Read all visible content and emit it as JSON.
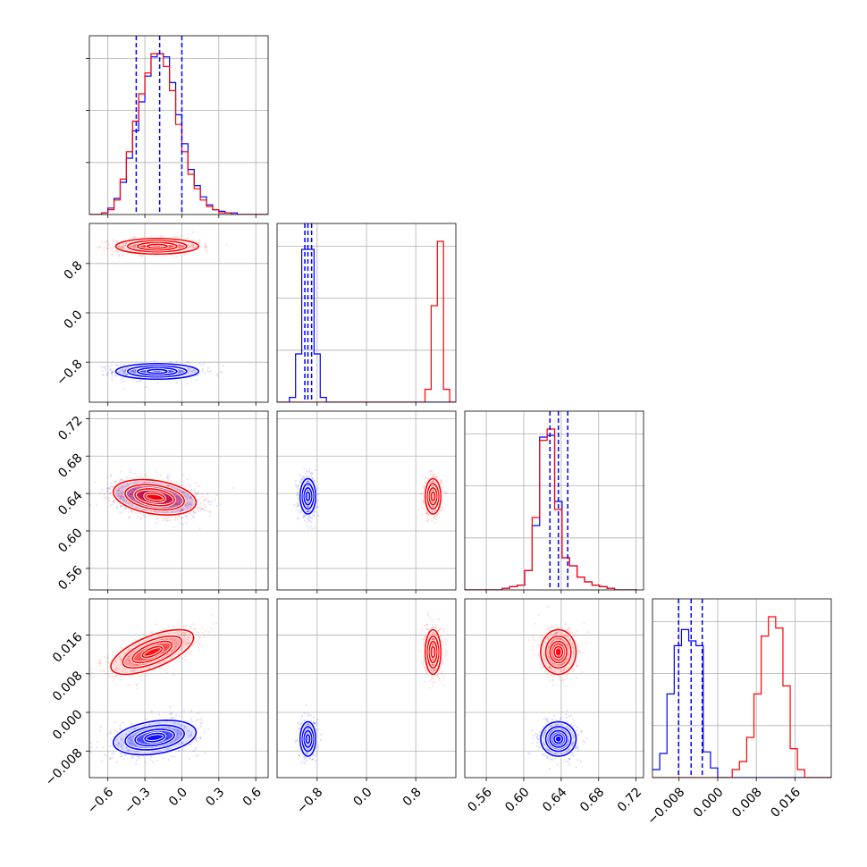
{
  "chart_data": {
    "type": "corner",
    "colors": {
      "blue": "#0000ff",
      "red": "#ff0000",
      "grid": "#b0b0b0"
    },
    "grid": true,
    "series": [
      {
        "color": "blue",
        "mean": [
          -0.18,
          -0.95,
          0.637,
          -0.0055
        ]
      },
      {
        "color": "red",
        "mean": [
          -0.18,
          1.08,
          0.637,
          0.0125
        ]
      }
    ],
    "parameters": [
      {
        "range": [
          -0.75,
          0.7
        ],
        "ticks": [
          -0.6,
          -0.3,
          0.0,
          0.3,
          0.6
        ],
        "tick_labels": [
          "−0.6",
          "−0.3",
          "0.0",
          "0.3",
          "0.6"
        ]
      },
      {
        "range": [
          -1.45,
          1.45
        ],
        "ticks": [
          -0.8,
          0.0,
          0.8
        ],
        "tick_labels": [
          "−0.8",
          "0.0",
          "0.8"
        ]
      },
      {
        "range": [
          0.537,
          0.728
        ],
        "ticks": [
          0.56,
          0.6,
          0.64,
          0.68,
          0.72
        ],
        "tick_labels": [
          "0.56",
          "0.60",
          "0.64",
          "0.68",
          "0.72"
        ]
      },
      {
        "range": [
          -0.0135,
          0.0235
        ],
        "ticks": [
          -0.008,
          0.0,
          0.008,
          0.016
        ],
        "tick_labels": [
          "−0.008",
          "0.000",
          "0.008",
          "0.016"
        ]
      }
    ],
    "quantile_lines": [
      [
        -0.37,
        -0.18,
        0.0
      ],
      [
        -1.0,
        -0.95,
        -0.89
      ],
      [
        0.628,
        0.637,
        0.647
      ],
      [
        -0.0081,
        -0.0055,
        -0.0032
      ]
    ],
    "histograms": [
      {
        "edges": [
          -0.75,
          -0.7,
          -0.65,
          -0.6,
          -0.55,
          -0.5,
          -0.45,
          -0.4,
          -0.35,
          -0.3,
          -0.25,
          -0.2,
          -0.15,
          -0.1,
          -0.05,
          0.0,
          0.05,
          0.1,
          0.15,
          0.2,
          0.25,
          0.3,
          0.35,
          0.4,
          0.45,
          0.5,
          0.55,
          0.6,
          0.65,
          0.7
        ],
        "blue": [
          0.0,
          0.0,
          0.01,
          0.04,
          0.1,
          0.2,
          0.35,
          0.52,
          0.7,
          0.86,
          0.98,
          1.0,
          0.98,
          0.82,
          0.62,
          0.44,
          0.28,
          0.18,
          0.11,
          0.06,
          0.03,
          0.02,
          0.01,
          0.01,
          0.0,
          0.0,
          0.0,
          0.0,
          0.0
        ],
        "red": [
          0.0,
          0.0,
          0.01,
          0.03,
          0.09,
          0.22,
          0.39,
          0.58,
          0.75,
          0.88,
          1.0,
          1.0,
          0.92,
          0.77,
          0.56,
          0.39,
          0.25,
          0.16,
          0.09,
          0.05,
          0.03,
          0.01,
          0.01,
          0.0,
          0.0,
          0.0,
          0.0,
          0.0,
          0.0
        ]
      },
      {
        "edges": [
          -1.45,
          -1.35,
          -1.25,
          -1.15,
          -1.05,
          -0.95,
          -0.85,
          -0.75,
          -0.65,
          -0.55,
          -0.45,
          -0.35,
          -0.25,
          -0.15,
          -0.05,
          0.05,
          0.15,
          0.25,
          0.35,
          0.45,
          0.55,
          0.65,
          0.75,
          0.85,
          0.95,
          1.05,
          1.15,
          1.25,
          1.35,
          1.45
        ],
        "blue": [
          0.0,
          0.0,
          0.03,
          0.3,
          0.95,
          0.95,
          0.3,
          0.03,
          0.0,
          0.0,
          0.0,
          0.0,
          0.0,
          0.0,
          0.0,
          0.0,
          0.0,
          0.0,
          0.0,
          0.0,
          0.0,
          0.0,
          0.0,
          0.0,
          0.0,
          0.0,
          0.0,
          0.0,
          0.0
        ],
        "red": [
          0.0,
          0.0,
          0.0,
          0.0,
          0.0,
          0.0,
          0.0,
          0.0,
          0.0,
          0.0,
          0.0,
          0.0,
          0.0,
          0.0,
          0.0,
          0.0,
          0.0,
          0.0,
          0.0,
          0.0,
          0.0,
          0.0,
          0.0,
          0.0,
          0.08,
          0.6,
          1.0,
          0.08,
          0.0
        ]
      },
      {
        "edges": [
          0.537,
          0.545,
          0.553,
          0.561,
          0.569,
          0.577,
          0.585,
          0.593,
          0.601,
          0.609,
          0.617,
          0.625,
          0.633,
          0.641,
          0.649,
          0.657,
          0.665,
          0.673,
          0.681,
          0.689,
          0.697,
          0.705,
          0.713,
          0.721
        ],
        "blue": [
          0.0,
          0.0,
          0.0,
          0.0,
          0.0,
          0.01,
          0.02,
          0.03,
          0.12,
          0.4,
          0.95,
          0.96,
          0.55,
          0.2,
          0.15,
          0.08,
          0.05,
          0.03,
          0.02,
          0.01,
          0.0,
          0.0,
          0.0
        ],
        "red": [
          0.0,
          0.0,
          0.0,
          0.0,
          0.0,
          0.01,
          0.02,
          0.03,
          0.12,
          0.45,
          0.93,
          1.0,
          0.5,
          0.2,
          0.15,
          0.08,
          0.05,
          0.03,
          0.02,
          0.01,
          0.0,
          0.0,
          0.0
        ]
      },
      {
        "edges": [
          -0.0135,
          -0.012,
          -0.0105,
          -0.009,
          -0.0075,
          -0.006,
          -0.0045,
          -0.003,
          -0.0015,
          0.0,
          0.0015,
          0.003,
          0.0045,
          0.006,
          0.0075,
          0.009,
          0.0105,
          0.012,
          0.0135,
          0.015,
          0.0165,
          0.018,
          0.0195,
          0.021,
          0.0235
        ],
        "blue": [
          0.05,
          0.15,
          0.52,
          0.82,
          0.92,
          0.85,
          0.82,
          0.16,
          0.06,
          0.0,
          0.0,
          0.0,
          0.0,
          0.0,
          0.0,
          0.0,
          0.0,
          0.0,
          0.0,
          0.0,
          0.0,
          0.0,
          0.0,
          0.0
        ],
        "red": [
          0.0,
          0.0,
          0.0,
          0.0,
          0.0,
          0.0,
          0.0,
          0.0,
          0.0,
          0.0,
          0.0,
          0.05,
          0.1,
          0.25,
          0.52,
          0.88,
          1.0,
          0.93,
          0.57,
          0.18,
          0.05,
          0.0,
          0.0,
          0.0
        ]
      }
    ],
    "pair_densities": [
      {
        "pair": [
          1,
          0
        ],
        "blue": {
          "center": [
            -0.2,
            -0.95
          ],
          "sd": [
            0.16,
            0.06
          ],
          "corr": 0.0
        },
        "red": {
          "center": [
            -0.2,
            1.08
          ],
          "sd": [
            0.16,
            0.06
          ],
          "corr": 0.0
        }
      },
      {
        "pair": [
          2,
          0
        ],
        "blue": {
          "center": [
            -0.22,
            0.636
          ],
          "sd": [
            0.16,
            0.009
          ],
          "corr": -0.3
        },
        "red": {
          "center": [
            -0.22,
            0.636
          ],
          "sd": [
            0.16,
            0.009
          ],
          "corr": -0.3
        }
      },
      {
        "pair": [
          2,
          1
        ],
        "blue": {
          "center": [
            -0.95,
            0.637
          ],
          "sd": [
            0.06,
            0.009
          ],
          "corr": 0.0
        },
        "red": {
          "center": [
            1.08,
            0.637
          ],
          "sd": [
            0.06,
            0.009
          ],
          "corr": 0.0
        }
      },
      {
        "pair": [
          3,
          0
        ],
        "blue": {
          "center": [
            -0.22,
            -0.0052
          ],
          "sd": [
            0.16,
            0.0017
          ],
          "corr": 0.3
        },
        "red": {
          "center": [
            -0.24,
            0.0125
          ],
          "sd": [
            0.16,
            0.0022
          ],
          "corr": 0.65
        }
      },
      {
        "pair": [
          3,
          1
        ],
        "blue": {
          "center": [
            -0.95,
            -0.0055
          ],
          "sd": [
            0.06,
            0.0017
          ],
          "corr": 0.0
        },
        "red": {
          "center": [
            1.08,
            0.0125
          ],
          "sd": [
            0.06,
            0.0022
          ],
          "corr": 0.0
        }
      },
      {
        "pair": [
          3,
          2
        ],
        "blue": {
          "center": [
            0.637,
            -0.0055
          ],
          "sd": [
            0.009,
            0.0017
          ],
          "corr": 0.0
        },
        "red": {
          "center": [
            0.637,
            0.0125
          ],
          "sd": [
            0.009,
            0.0022
          ],
          "corr": 0.0
        }
      }
    ]
  }
}
